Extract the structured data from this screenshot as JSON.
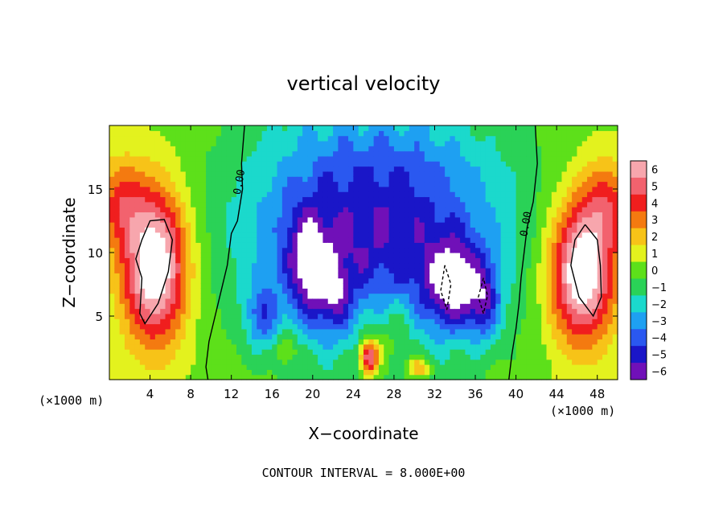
{
  "chart_data": {
    "type": "heatmap",
    "title": "vertical velocity",
    "xlabel": "X−coordinate",
    "ylabel": "Z−coordinate",
    "x_unit_left": "(×1000 m)",
    "x_unit_right": "(×1000 m)",
    "xlim": [
      0,
      50
    ],
    "ylim": [
      0,
      20
    ],
    "x_ticks": [
      4,
      8,
      12,
      16,
      20,
      24,
      28,
      32,
      36,
      40,
      44,
      48
    ],
    "y_ticks": [
      5,
      10,
      15
    ],
    "x_tick_labels": [
      "4",
      "8",
      "12",
      "16",
      "20",
      "24",
      "28",
      "32",
      "36",
      "40",
      "44",
      "48"
    ],
    "y_tick_labels": [
      "5",
      "10",
      "15"
    ],
    "colorbar": {
      "levels": [
        6,
        5,
        4,
        3,
        2,
        1,
        0,
        -1,
        -2,
        -3,
        -4,
        -5,
        -6
      ],
      "labels": [
        "6",
        "5",
        "4",
        "3",
        "2",
        "1",
        "0",
        "−1",
        "−2",
        "−3",
        "−4",
        "−5",
        "−6"
      ]
    },
    "contour_labels": [
      {
        "text": "0.00",
        "x": 13.1,
        "z": 15.5
      },
      {
        "text": "0.00",
        "x": 41.3,
        "z": 12.2
      }
    ],
    "anomalies": [
      {
        "x": 4.5,
        "z": 9,
        "sx": 3.2,
        "sz": 6,
        "amp": 8
      },
      {
        "x": 1.0,
        "z": 14,
        "sx": 2.5,
        "sz": 3.5,
        "amp": 3
      },
      {
        "x": 46.5,
        "z": 8.5,
        "sx": 3.2,
        "sz": 5.5,
        "amp": 8
      },
      {
        "x": 49.0,
        "z": 14,
        "sx": 2.5,
        "sz": 3.5,
        "amp": 3
      },
      {
        "x": 25.5,
        "z": 1.8,
        "sx": 0.9,
        "sz": 1.4,
        "amp": 7
      },
      {
        "x": 30.5,
        "z": 1.0,
        "sx": 1.2,
        "sz": 0.8,
        "amp": 3
      },
      {
        "x": 17.5,
        "z": 2.5,
        "sx": 1.0,
        "sz": 1.2,
        "amp": 2
      },
      {
        "x": 26.0,
        "z": 12,
        "sx": 13.5,
        "sz": 10,
        "amp": -6
      },
      {
        "x": 19.5,
        "z": 9,
        "sx": 2.0,
        "sz": 4.0,
        "amp": -4
      },
      {
        "x": 34.0,
        "z": 7.5,
        "sx": 2.8,
        "sz": 3.5,
        "amp": -5
      },
      {
        "x": 15.0,
        "z": 5,
        "sx": 1.5,
        "sz": 2.5,
        "amp": -3
      },
      {
        "x": 22.0,
        "z": 7,
        "sx": 1.6,
        "sz": 3.0,
        "amp": -3
      },
      {
        "x": 37.0,
        "z": 6,
        "sx": 1.5,
        "sz": 3.0,
        "amp": -3
      },
      {
        "x": 27.5,
        "z": 4,
        "sx": 2.5,
        "sz": 3.0,
        "amp": 2
      }
    ],
    "contour_interval_label": "CONTOUR INTERVAL = 8.000E+00"
  }
}
